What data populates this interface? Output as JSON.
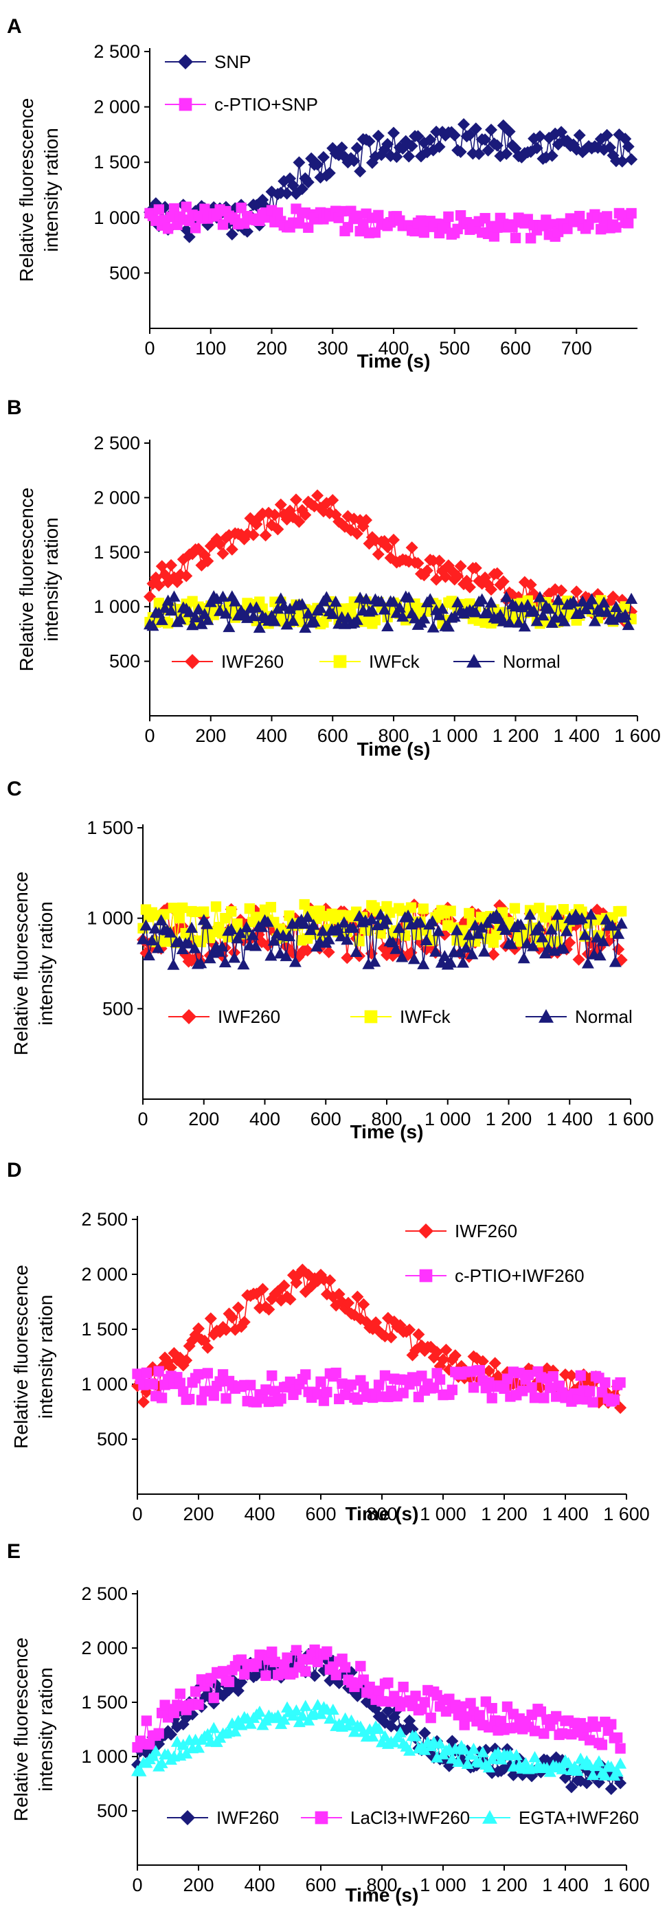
{
  "figure": {
    "panels": [
      "A",
      "B",
      "C",
      "D",
      "E"
    ]
  },
  "chart_data": [
    {
      "panel": "A",
      "type": "line",
      "xlabel": "Time (s)",
      "ylabel": [
        "Relative fluorescence",
        "intensity ration"
      ],
      "xlim": [
        0,
        800
      ],
      "ylim": [
        0,
        2500
      ],
      "xticks": [
        0,
        100,
        200,
        300,
        400,
        500,
        600,
        700
      ],
      "xtick_labels": [
        "0",
        "100",
        "200",
        "300",
        "400",
        "500",
        "600",
        "700"
      ],
      "yticks": [
        500,
        1000,
        1500,
        2000,
        2500
      ],
      "ytick_labels": [
        "500",
        "1 000",
        "1 500",
        "2 000",
        "2 500"
      ],
      "legend_position": "top-left",
      "series": [
        {
          "name": "SNP",
          "color": "#1a1a7a",
          "marker": "diamond",
          "x_end": 790,
          "points": [
            [
              0,
              1000
            ],
            [
              100,
              950
            ],
            [
              180,
              1000
            ],
            [
              220,
              1300
            ],
            [
              300,
              1500
            ],
            [
              400,
              1650
            ],
            [
              500,
              1700
            ],
            [
              600,
              1700
            ],
            [
              700,
              1650
            ],
            [
              790,
              1600
            ]
          ],
          "noise": 150
        },
        {
          "name": "c-PTIO+SNP",
          "color": "#ff33ff",
          "marker": "square",
          "x_end": 790,
          "points": [
            [
              0,
              1000
            ],
            [
              200,
              1000
            ],
            [
              400,
              950
            ],
            [
              600,
              900
            ],
            [
              790,
              950
            ]
          ],
          "noise": 100
        }
      ]
    },
    {
      "panel": "B",
      "type": "line",
      "xlabel": "Time (s)",
      "ylabel": [
        "Relative fluorescence",
        "intensity ration"
      ],
      "xlim": [
        0,
        1600
      ],
      "ylim": [
        0,
        2500
      ],
      "xticks": [
        0,
        200,
        400,
        600,
        800,
        1000,
        1200,
        1400,
        1600
      ],
      "xtick_labels": [
        "0",
        "200",
        "400",
        "600",
        "800",
        "1 000",
        "1 200",
        "1 400",
        "1 600"
      ],
      "yticks": [
        500,
        1000,
        1500,
        2000,
        2500
      ],
      "ytick_labels": [
        "500",
        "1 000",
        "1 500",
        "2 000",
        "2 500"
      ],
      "legend_position": "bottom",
      "series": [
        {
          "name": "IWF260",
          "color": "#ff2020",
          "marker": "diamond",
          "x_end": 1580,
          "points": [
            [
              0,
              1200
            ],
            [
              200,
              1500
            ],
            [
              400,
              1800
            ],
            [
              550,
              1950
            ],
            [
              650,
              1800
            ],
            [
              800,
              1500
            ],
            [
              1000,
              1300
            ],
            [
              1200,
              1150
            ],
            [
              1400,
              1050
            ],
            [
              1580,
              950
            ]
          ],
          "noise": 120
        },
        {
          "name": "IWFck",
          "color": "#ffff00",
          "marker": "square",
          "x_end": 1580,
          "points": [
            [
              0,
              950
            ],
            [
              400,
              950
            ],
            [
              800,
              950
            ],
            [
              1200,
              950
            ],
            [
              1580,
              950
            ]
          ],
          "noise": 110
        },
        {
          "name": "Normal",
          "color": "#1a1a7a",
          "marker": "triangle",
          "x_end": 1580,
          "points": [
            [
              0,
              950
            ],
            [
              400,
              950
            ],
            [
              800,
              950
            ],
            [
              1200,
              950
            ],
            [
              1580,
              950
            ]
          ],
          "noise": 150
        }
      ]
    },
    {
      "panel": "C",
      "type": "line",
      "xlabel": "Time (s)",
      "ylabel": [
        "Relative fluorescence",
        "intensity ration"
      ],
      "xlim": [
        0,
        1600
      ],
      "ylim": [
        0,
        1500
      ],
      "xticks": [
        0,
        200,
        400,
        600,
        800,
        1000,
        1200,
        1400,
        1600
      ],
      "xtick_labels": [
        "0",
        "200",
        "400",
        "600",
        "800",
        "1 000",
        "1 200",
        "1 400",
        "1 600"
      ],
      "yticks": [
        500,
        1000,
        1500
      ],
      "ytick_labels": [
        "500",
        "1 000",
        "1 500"
      ],
      "legend_position": "bottom",
      "series": [
        {
          "name": "IWF260",
          "color": "#ff2020",
          "marker": "diamond",
          "x_end": 1570,
          "points": [
            [
              0,
              900
            ],
            [
              400,
              920
            ],
            [
              800,
              930
            ],
            [
              1200,
              920
            ],
            [
              1570,
              900
            ]
          ],
          "noise": 150
        },
        {
          "name": "IWFck",
          "color": "#ffff00",
          "marker": "square",
          "x_end": 1570,
          "points": [
            [
              0,
              950
            ],
            [
              400,
              980
            ],
            [
              800,
              970
            ],
            [
              1200,
              960
            ],
            [
              1570,
              950
            ]
          ],
          "noise": 100
        },
        {
          "name": "Normal",
          "color": "#1a1a7a",
          "marker": "triangle",
          "x_end": 1570,
          "points": [
            [
              0,
              880
            ],
            [
              400,
              880
            ],
            [
              800,
              880
            ],
            [
              1200,
              880
            ],
            [
              1570,
              880
            ]
          ],
          "noise": 140
        }
      ]
    },
    {
      "panel": "D",
      "type": "line",
      "xlabel": "Time (s)",
      "ylabel": [
        "Relative fluorescence",
        "intensity ration"
      ],
      "xlim": [
        0,
        1600
      ],
      "ylim": [
        0,
        2500
      ],
      "xticks": [
        0,
        200,
        400,
        600,
        800,
        1000,
        1200,
        1400,
        1600
      ],
      "xtick_labels": [
        "0",
        "200",
        "400",
        "600",
        "800",
        "1 000",
        "1 200",
        "1 400",
        "1 600"
      ],
      "yticks": [
        500,
        1000,
        1500,
        2000,
        2500
      ],
      "ytick_labels": [
        "500",
        "1 000",
        "1 500",
        "2 000",
        "2 500"
      ],
      "legend_position": "top-right",
      "series": [
        {
          "name": "IWF260",
          "color": "#ff2020",
          "marker": "diamond",
          "x_end": 1580,
          "points": [
            [
              0,
              900
            ],
            [
              200,
              1400
            ],
            [
              400,
              1750
            ],
            [
              550,
              1950
            ],
            [
              700,
              1750
            ],
            [
              850,
              1450
            ],
            [
              1000,
              1200
            ],
            [
              1200,
              1050
            ],
            [
              1400,
              1000
            ],
            [
              1580,
              900
            ]
          ],
          "noise": 130
        },
        {
          "name": "c-PTIO+IWF260",
          "color": "#ff33ff",
          "marker": "square",
          "x_end": 1580,
          "points": [
            [
              0,
              1000
            ],
            [
              400,
              950
            ],
            [
              800,
              1000
            ],
            [
              1200,
              1000
            ],
            [
              1580,
              950
            ]
          ],
          "noise": 130
        }
      ]
    },
    {
      "panel": "E",
      "type": "line",
      "xlabel": "Time (s)",
      "ylabel": [
        "Relative fluorescence",
        "intensity ration"
      ],
      "xlim": [
        0,
        1600
      ],
      "ylim": [
        0,
        2500
      ],
      "xticks": [
        0,
        200,
        400,
        600,
        800,
        1000,
        1200,
        1400,
        1600
      ],
      "xtick_labels": [
        "0",
        "200",
        "400",
        "600",
        "800",
        "1 000",
        "1 200",
        "1 400",
        "1 600"
      ],
      "yticks": [
        500,
        1000,
        1500,
        2000,
        2500
      ],
      "ytick_labels": [
        "500",
        "1 000",
        "1 500",
        "2 000",
        "2 500"
      ],
      "legend_position": "bottom",
      "series": [
        {
          "name": "IWF260",
          "color": "#1a1a7a",
          "marker": "diamond",
          "x_end": 1580,
          "points": [
            [
              0,
              1000
            ],
            [
              200,
              1500
            ],
            [
              400,
              1800
            ],
            [
              550,
              1850
            ],
            [
              700,
              1700
            ],
            [
              850,
              1300
            ],
            [
              1000,
              1050
            ],
            [
              1200,
              950
            ],
            [
              1400,
              850
            ],
            [
              1580,
              800
            ]
          ],
          "noise": 130
        },
        {
          "name": "LaCl3+IWF260",
          "color": "#ff33ff",
          "marker": "square",
          "x_end": 1580,
          "points": [
            [
              0,
              1150
            ],
            [
              200,
              1600
            ],
            [
              400,
              1850
            ],
            [
              600,
              1900
            ],
            [
              800,
              1600
            ],
            [
              1000,
              1450
            ],
            [
              1200,
              1350
            ],
            [
              1400,
              1300
            ],
            [
              1580,
              1200
            ]
          ],
          "noise": 130
        },
        {
          "name": "EGTA+IWF260",
          "color": "#33ffff",
          "marker": "triangle",
          "x_end": 1580,
          "points": [
            [
              0,
              900
            ],
            [
              200,
              1150
            ],
            [
              400,
              1350
            ],
            [
              600,
              1400
            ],
            [
              800,
              1200
            ],
            [
              1000,
              1050
            ],
            [
              1200,
              950
            ],
            [
              1400,
              900
            ],
            [
              1580,
              900
            ]
          ],
          "noise": 80
        }
      ]
    }
  ]
}
